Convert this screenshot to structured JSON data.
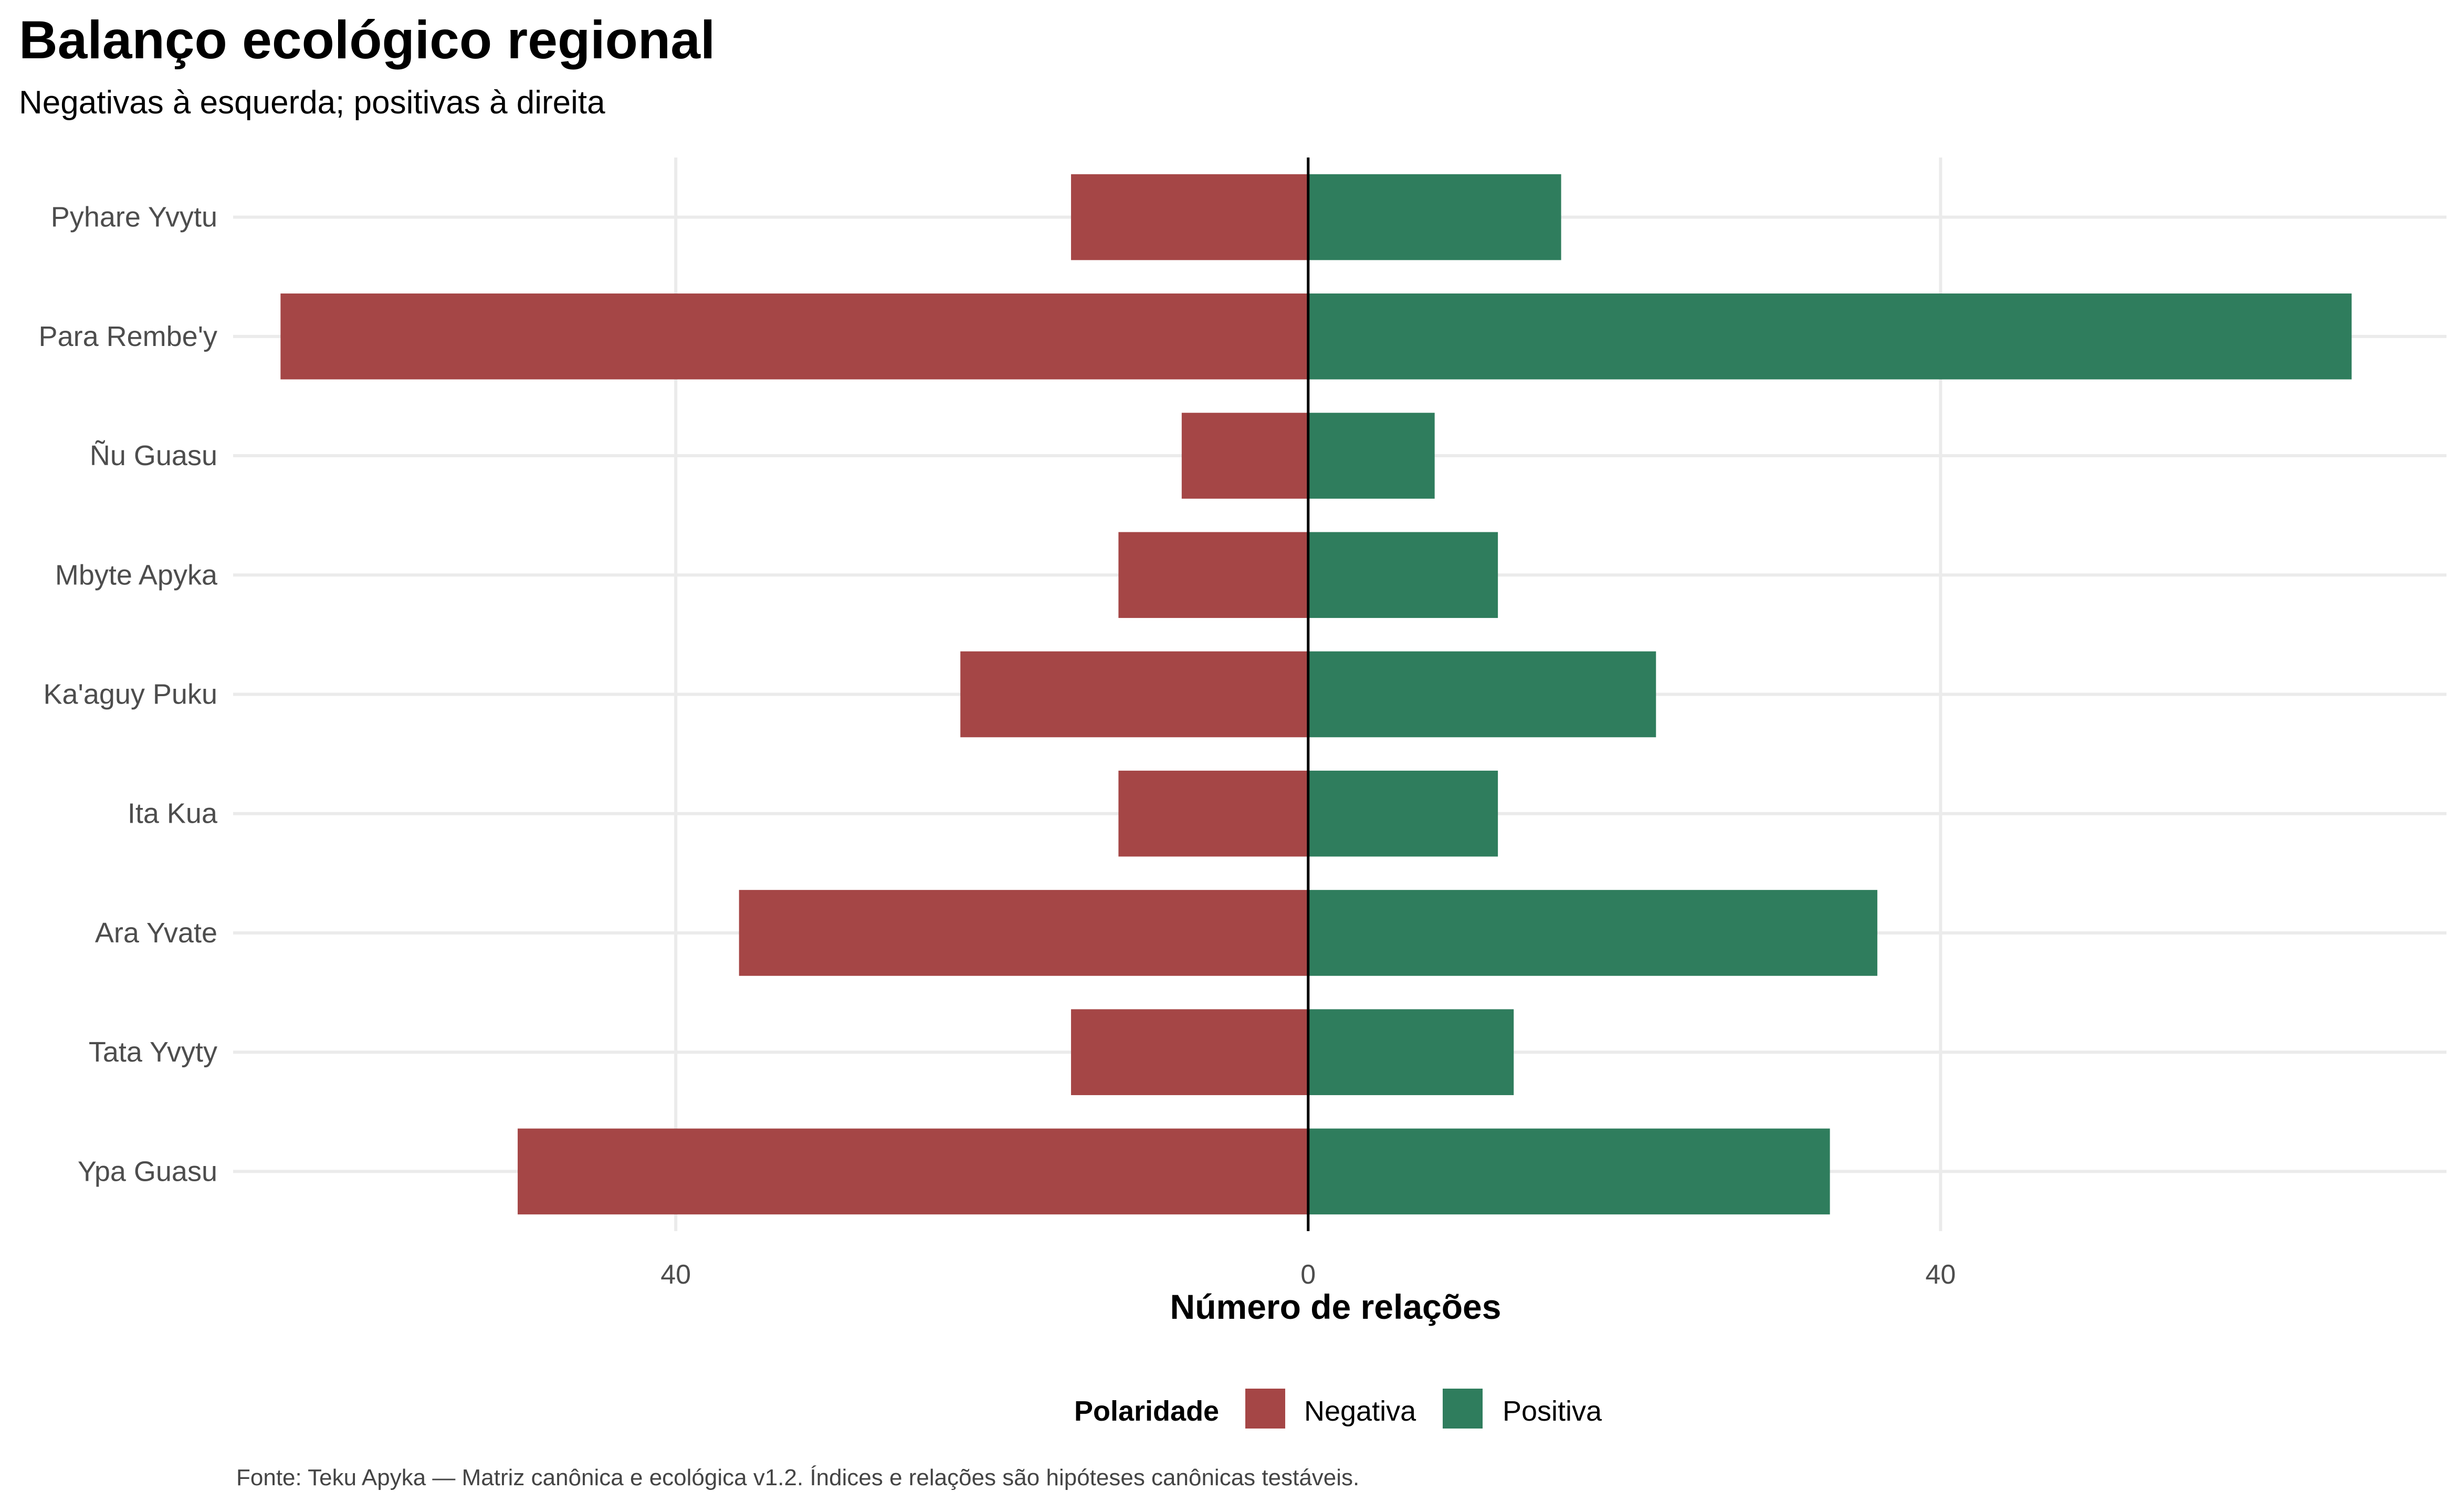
{
  "title": "Balanço ecológico regional",
  "subtitle": "Negativas à esquerda; positivas à direita",
  "caption": "Fonte: Teku Apyka — Matriz canônica e ecológica v1.2. Índices e relações são hipóteses canônicas testáveis.",
  "legend": {
    "title": "Polaridade",
    "items": [
      {
        "label": "Negativa",
        "color": "#A54646"
      },
      {
        "label": "Positiva",
        "color": "#2F7D5D"
      }
    ]
  },
  "chart_data": {
    "type": "bar",
    "orientation": "horizontal-diverging",
    "title": "Balanço ecológico regional",
    "subtitle": "Negativas à esquerda; positivas à direita",
    "xlabel": "Número de relações",
    "ylabel": "",
    "xlim": [
      -68,
      72
    ],
    "x_ticks": [
      -40,
      0,
      40
    ],
    "x_tick_labels": [
      "40",
      "0",
      "40"
    ],
    "grid": true,
    "legend_position": "bottom",
    "categories": [
      "Pyhare Yvytu",
      "Para Rembe'y",
      "Ñu Guasu",
      "Mbyte Apyka",
      "Ka'aguy Puku",
      "Ita Kua",
      "Ara Yvate",
      "Tata Yvyty",
      "Ypa Guasu"
    ],
    "series": [
      {
        "name": "Negativa",
        "color": "#A54646",
        "values": [
          -15,
          -65,
          -8,
          -12,
          -22,
          -12,
          -36,
          -15,
          -50
        ]
      },
      {
        "name": "Positiva",
        "color": "#2F7D5D",
        "values": [
          16,
          66,
          8,
          12,
          22,
          12,
          36,
          13,
          33
        ]
      }
    ]
  }
}
